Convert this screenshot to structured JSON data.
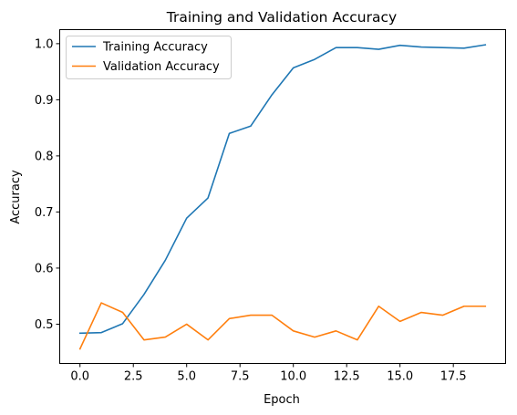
{
  "chart_data": {
    "type": "line",
    "title": "Training and Validation Accuracy",
    "xlabel": "Epoch",
    "ylabel": "Accuracy",
    "xlim": [
      -0.95,
      19.95
    ],
    "ylim": [
      0.43,
      1.025
    ],
    "xticks": [
      0,
      2.5,
      5,
      7.5,
      10,
      12.5,
      15,
      17.5
    ],
    "xtick_labels": [
      "0.0",
      "2.5",
      "5.0",
      "7.5",
      "10.0",
      "12.5",
      "15.0",
      "17.5"
    ],
    "yticks": [
      0.5,
      0.6,
      0.7,
      0.8,
      0.9,
      1.0
    ],
    "ytick_labels": [
      "0.5",
      "0.6",
      "0.7",
      "0.8",
      "0.9",
      "1.0"
    ],
    "grid": false,
    "legend_position": "top-left",
    "x": [
      0,
      1,
      2,
      3,
      4,
      5,
      6,
      7,
      8,
      9,
      10,
      11,
      12,
      13,
      14,
      15,
      16,
      17,
      18,
      19
    ],
    "series": [
      {
        "name": "Training Accuracy",
        "color": "#1f77b4",
        "values": [
          0.484,
          0.485,
          0.501,
          0.553,
          0.614,
          0.689,
          0.725,
          0.84,
          0.853,
          0.909,
          0.957,
          0.972,
          0.993,
          0.993,
          0.99,
          0.997,
          0.994,
          0.993,
          0.992,
          0.998
        ]
      },
      {
        "name": "Validation Accuracy",
        "color": "#ff7f0e",
        "values": [
          0.456,
          0.538,
          0.521,
          0.472,
          0.477,
          0.5,
          0.472,
          0.51,
          0.516,
          0.516,
          0.488,
          0.477,
          0.488,
          0.472,
          0.532,
          0.505,
          0.521,
          0.516,
          0.532,
          0.532
        ]
      }
    ]
  }
}
